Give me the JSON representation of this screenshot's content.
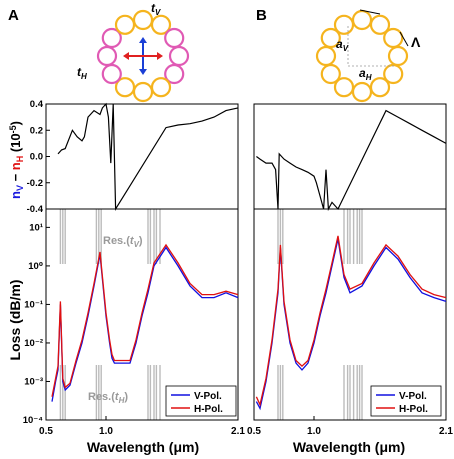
{
  "figure": {
    "panels": [
      {
        "letter": "A",
        "schematic": {
          "ring_color": "#f5b41e",
          "highlight_color": "#e05ab4",
          "label_top": "tV",
          "label_left": "tH",
          "arrow_colors": {
            "vertical": "#1a3fd6",
            "horizontal": "#e02020"
          }
        }
      },
      {
        "letter": "B",
        "schematic": {
          "ring_color": "#f5b41e",
          "label_aV": "aV",
          "label_aH": "aH",
          "label_lambda": "Λ"
        }
      }
    ]
  },
  "axes": {
    "top_ylabel_parts": [
      "n",
      "V",
      " − ",
      "n",
      "H",
      " (10",
      "−5",
      ")"
    ],
    "bottom_ylabel": "Loss (dB/m)",
    "xlabel": "Wavelength (μm)",
    "x_ticks": [
      "0.5",
      "1.0",
      "2.1"
    ],
    "top_y_ticks": [
      "0.4",
      "0.2",
      "0.0",
      "-0.2",
      "-0.4"
    ],
    "bottom_y_ticks": [
      "10¹",
      "10⁰",
      "10⁻¹",
      "10⁻²",
      "10⁻³",
      "10⁻⁴"
    ]
  },
  "annotations": {
    "res_tv": "Res.(tV)",
    "res_th": "Res.(tH)"
  },
  "legend": {
    "v_pol": "V-Pol.",
    "h_pol": "H-Pol.",
    "v_color": "#1010e0",
    "h_color": "#e01010"
  },
  "chart_data": [
    {
      "type": "line",
      "panel": "A",
      "xlabel": "Wavelength (μm)",
      "ylabel": "Loss (dB/m)",
      "log_y": true,
      "ylim": [
        0.0001,
        30
      ],
      "x_ticks": [
        0.5,
        1.0,
        2.1
      ],
      "series": [
        {
          "name": "V-Pol.",
          "x": [
            0.55,
            0.58,
            0.6,
            0.62,
            0.64,
            0.66,
            0.7,
            0.75,
            0.8,
            0.85,
            0.9,
            0.95,
            1.0,
            1.03,
            1.05,
            1.07,
            1.2,
            1.25,
            1.3,
            1.35,
            1.4,
            1.5,
            1.6,
            1.7,
            1.8,
            1.9,
            2.0,
            2.1
          ],
          "y": [
            0.0003,
            0.001,
            0.002,
            0.1,
            0.001,
            0.0006,
            0.0008,
            0.003,
            0.01,
            0.05,
            0.3,
            2,
            0.05,
            0.01,
            0.004,
            0.003,
            0.003,
            0.01,
            0.05,
            0.2,
            1,
            3,
            1,
            0.3,
            0.15,
            0.15,
            0.2,
            0.15
          ]
        },
        {
          "name": "H-Pol.",
          "x": [
            0.55,
            0.58,
            0.6,
            0.62,
            0.64,
            0.66,
            0.7,
            0.75,
            0.8,
            0.85,
            0.9,
            0.95,
            1.0,
            1.03,
            1.05,
            1.07,
            1.2,
            1.25,
            1.3,
            1.35,
            1.4,
            1.5,
            1.6,
            1.7,
            1.8,
            1.9,
            2.0,
            2.1
          ],
          "y": [
            0.0004,
            0.0012,
            0.0025,
            0.12,
            0.0012,
            0.0007,
            0.0009,
            0.0035,
            0.012,
            0.06,
            0.35,
            2.3,
            0.06,
            0.012,
            0.005,
            0.0035,
            0.0035,
            0.012,
            0.06,
            0.25,
            1.2,
            3.5,
            1.2,
            0.35,
            0.18,
            0.18,
            0.22,
            0.18
          ]
        }
      ],
      "top_inset": {
        "ylabel": "nV − nH (10−5)",
        "ylim": [
          -0.4,
          0.4
        ],
        "x": [
          0.6,
          0.63,
          0.66,
          0.72,
          0.76,
          0.8,
          0.82,
          0.85,
          0.9,
          0.95,
          0.97,
          1.0,
          1.02,
          1.04,
          1.06,
          1.08,
          1.5,
          1.6,
          1.7,
          1.8,
          1.9,
          2.0,
          2.1
        ],
        "y": [
          0.02,
          0.05,
          0.06,
          0.2,
          0.15,
          0.12,
          0.15,
          0.3,
          0.35,
          0.32,
          0.37,
          0.4,
          0.3,
          -0.05,
          0.4,
          -0.4,
          0.22,
          0.24,
          0.25,
          0.27,
          0.3,
          0.35,
          0.37
        ]
      }
    },
    {
      "type": "line",
      "panel": "B",
      "xlabel": "Wavelength (μm)",
      "ylabel": "Loss (dB/m)",
      "log_y": true,
      "ylim": [
        0.0001,
        30
      ],
      "x_ticks": [
        0.5,
        1.0,
        2.1
      ],
      "series": [
        {
          "name": "V-Pol.",
          "x": [
            0.52,
            0.55,
            0.6,
            0.65,
            0.7,
            0.72,
            0.75,
            0.8,
            0.85,
            0.9,
            0.95,
            1.0,
            1.05,
            1.1,
            1.15,
            1.2,
            1.25,
            1.3,
            1.4,
            1.5,
            1.6,
            1.7,
            1.8,
            1.9,
            2.0,
            2.1
          ],
          "y": [
            0.0003,
            0.0002,
            0.001,
            0.01,
            0.2,
            3,
            0.1,
            0.01,
            0.003,
            0.002,
            0.003,
            0.01,
            0.05,
            0.2,
            1,
            5,
            0.5,
            0.2,
            0.3,
            1,
            3,
            1.5,
            0.5,
            0.2,
            0.15,
            0.12
          ]
        },
        {
          "name": "H-Pol.",
          "x": [
            0.52,
            0.55,
            0.6,
            0.65,
            0.7,
            0.72,
            0.75,
            0.8,
            0.85,
            0.9,
            0.95,
            1.0,
            1.05,
            1.1,
            1.15,
            1.2,
            1.25,
            1.3,
            1.4,
            1.5,
            1.6,
            1.7,
            1.8,
            1.9,
            2.0,
            2.1
          ],
          "y": [
            0.0004,
            0.00025,
            0.0012,
            0.012,
            0.25,
            3.5,
            0.12,
            0.012,
            0.0035,
            0.0025,
            0.0035,
            0.012,
            0.06,
            0.25,
            1.2,
            6,
            0.6,
            0.25,
            0.35,
            1.2,
            3.5,
            1.8,
            0.6,
            0.25,
            0.18,
            0.15
          ]
        }
      ],
      "top_inset": {
        "ylabel": "nV − nH (10−5)",
        "ylim": [
          -0.4,
          0.4
        ],
        "x": [
          0.52,
          0.55,
          0.6,
          0.65,
          0.68,
          0.7,
          0.71,
          0.75,
          0.8,
          0.85,
          0.9,
          0.95,
          1.0,
          1.02,
          1.05,
          1.08,
          1.1,
          1.12,
          1.15,
          1.2,
          1.6,
          1.7,
          1.8,
          1.9,
          2.0,
          2.1
        ],
        "y": [
          0.0,
          -0.02,
          -0.05,
          -0.05,
          -0.1,
          -0.4,
          0.02,
          -0.02,
          -0.05,
          -0.08,
          -0.1,
          -0.12,
          -0.15,
          -0.2,
          -0.3,
          -0.4,
          -0.1,
          -0.4,
          -0.35,
          -0.4,
          0.35,
          0.3,
          0.25,
          0.2,
          0.15,
          0.1
        ]
      }
    }
  ]
}
